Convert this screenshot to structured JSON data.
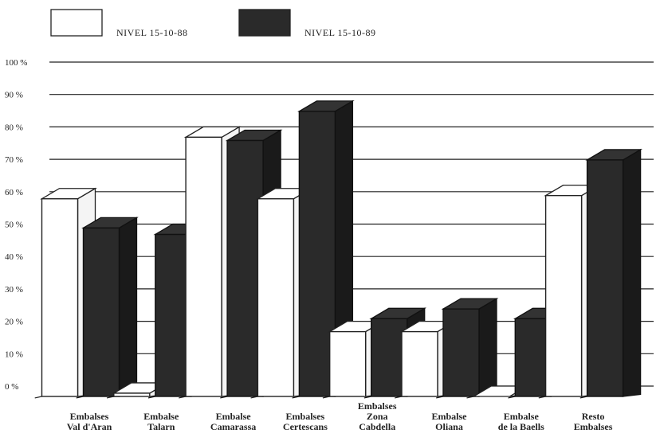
{
  "chart_data": {
    "type": "bar",
    "title": "",
    "xlabel": "",
    "ylabel": "",
    "ylim": [
      0,
      100
    ],
    "y_ticks": [
      {
        "value": 0,
        "label": "0 %"
      },
      {
        "value": 10,
        "label": "10 %"
      },
      {
        "value": 20,
        "label": "20 %"
      },
      {
        "value": 30,
        "label": "30 %"
      },
      {
        "value": 40,
        "label": "40 %"
      },
      {
        "value": 50,
        "label": "50 %"
      },
      {
        "value": 60,
        "label": "60 %"
      },
      {
        "value": 70,
        "label": "70 %"
      },
      {
        "value": 80,
        "label": "80 %"
      },
      {
        "value": 90,
        "label": "90 %"
      },
      {
        "value": 100,
        "label": "100 %"
      }
    ],
    "grid": true,
    "legend_position": "top-left",
    "categories": [
      [
        "Embalses",
        "Val d'Aran"
      ],
      [
        "Embalse",
        "Talarn"
      ],
      [
        "Embalse",
        "Camarassa"
      ],
      [
        "Embalses",
        "Certescans"
      ],
      [
        "Embalses",
        "Zona",
        "Cabdella"
      ],
      [
        "Embalse",
        "Oliana"
      ],
      [
        "Embalse",
        "de la Baells"
      ],
      [
        "Resto",
        "Embalses"
      ]
    ],
    "series": [
      {
        "name": "NIVEL 15-10-88",
        "color": "#ffffff",
        "values": [
          61,
          1,
          80,
          61,
          20,
          20,
          0,
          62
        ]
      },
      {
        "name": "NIVEL 15-10-89",
        "color": "#2a2a2a",
        "values": [
          52,
          50,
          79,
          88,
          24,
          27,
          24,
          73
        ]
      }
    ]
  }
}
